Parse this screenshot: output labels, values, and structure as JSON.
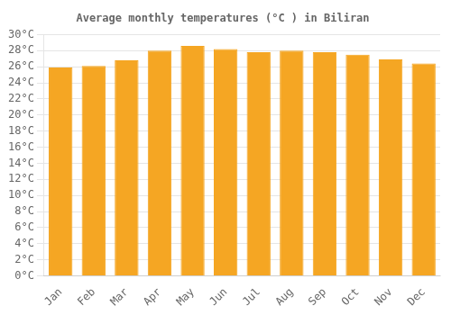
{
  "chart_data": {
    "type": "bar",
    "title": "Average monthly temperatures (°C ) in Biliran",
    "categories": [
      "Jan",
      "Feb",
      "Mar",
      "Apr",
      "May",
      "Jun",
      "Jul",
      "Aug",
      "Sep",
      "Oct",
      "Nov",
      "Dec"
    ],
    "values": [
      25.9,
      26.1,
      26.8,
      28.0,
      28.6,
      28.2,
      27.8,
      28.0,
      27.8,
      27.5,
      26.9,
      26.4
    ],
    "color": "#F5A623",
    "ylim": [
      0,
      30
    ],
    "yticks": [
      {
        "value": 0,
        "label": "0°C"
      },
      {
        "value": 2,
        "label": "2°C"
      },
      {
        "value": 4,
        "label": "4°C"
      },
      {
        "value": 6,
        "label": "6°C"
      },
      {
        "value": 8,
        "label": "8°C"
      },
      {
        "value": 10,
        "label": "10°C"
      },
      {
        "value": 12,
        "label": "12°C"
      },
      {
        "value": 14,
        "label": "14°C"
      },
      {
        "value": 16,
        "label": "16°C"
      },
      {
        "value": 18,
        "label": "18°C"
      },
      {
        "value": 20,
        "label": "20°C"
      },
      {
        "value": 22,
        "label": "22°C"
      },
      {
        "value": 24,
        "label": "24°C"
      },
      {
        "value": 26,
        "label": "26°C"
      },
      {
        "value": 28,
        "label": "28°C"
      },
      {
        "value": 30,
        "label": "30°C"
      }
    ],
    "grid": true
  }
}
